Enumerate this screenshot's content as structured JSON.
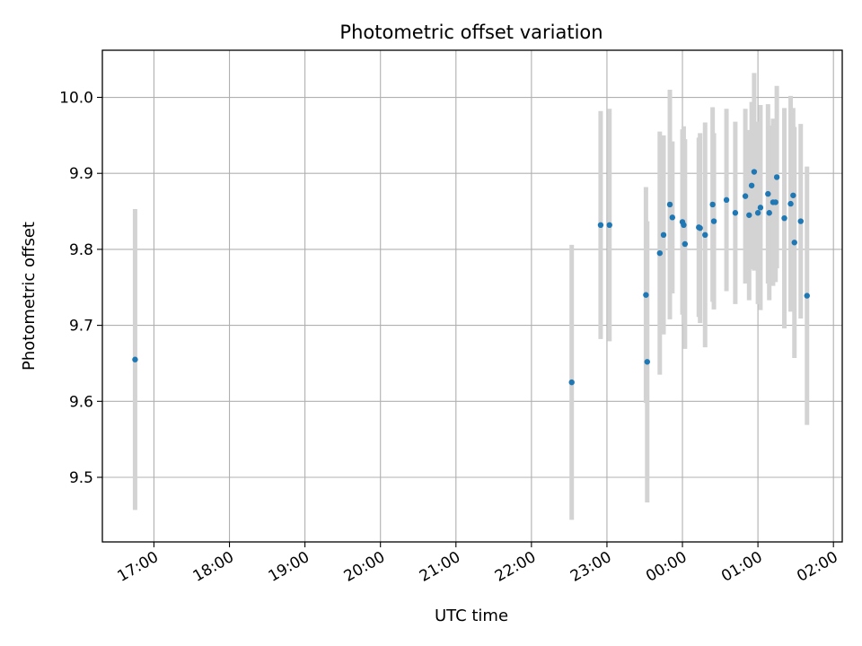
{
  "chart_data": {
    "type": "scatter",
    "title": "Photometric offset variation",
    "xlabel": "UTC time",
    "ylabel": "Photometric offset",
    "x_ticks": [
      "17:00",
      "18:00",
      "19:00",
      "20:00",
      "21:00",
      "22:00",
      "23:00",
      "00:00",
      "01:00",
      "02:00"
    ],
    "y_ticks": [
      "9.5",
      "9.6",
      "9.7",
      "9.8",
      "9.9",
      "10.0"
    ],
    "xlim": [
      "16:19",
      "02:07"
    ],
    "ylim": [
      9.415,
      10.062
    ],
    "grid": true,
    "colors": {
      "points": "#1f77b4",
      "errorbars": "#d3d3d3",
      "grid": "#b0b0b0"
    },
    "series": [
      {
        "points": [
          {
            "t": "16:45",
            "y": 9.655,
            "err": 0.198
          },
          {
            "t": "22:32",
            "y": 9.625,
            "err": 0.181
          },
          {
            "t": "22:55",
            "y": 9.832,
            "err": 0.15
          },
          {
            "t": "23:02",
            "y": 9.832,
            "err": 0.153
          },
          {
            "t": "23:31",
            "y": 9.74,
            "err": 0.142
          },
          {
            "t": "23:32",
            "y": 9.652,
            "err": 0.185
          },
          {
            "t": "23:42",
            "y": 9.795,
            "err": 0.16
          },
          {
            "t": "23:45",
            "y": 9.819,
            "err": 0.131
          },
          {
            "t": "23:50",
            "y": 9.859,
            "err": 0.151
          },
          {
            "t": "23:52",
            "y": 9.842,
            "err": 0.1
          },
          {
            "t": "00:00",
            "y": 9.836,
            "err": 0.122
          },
          {
            "t": "00:01",
            "y": 9.832,
            "err": 0.13
          },
          {
            "t": "00:02",
            "y": 9.807,
            "err": 0.138
          },
          {
            "t": "00:13",
            "y": 9.829,
            "err": 0.118
          },
          {
            "t": "00:14",
            "y": 9.828,
            "err": 0.125
          },
          {
            "t": "00:18",
            "y": 9.819,
            "err": 0.148
          },
          {
            "t": "00:24",
            "y": 9.859,
            "err": 0.128
          },
          {
            "t": "00:25",
            "y": 9.837,
            "err": 0.116
          },
          {
            "t": "00:35",
            "y": 9.865,
            "err": 0.12
          },
          {
            "t": "00:42",
            "y": 9.848,
            "err": 0.12
          },
          {
            "t": "00:50",
            "y": 9.87,
            "err": 0.115
          },
          {
            "t": "00:53",
            "y": 9.845,
            "err": 0.112
          },
          {
            "t": "00:55",
            "y": 9.884,
            "err": 0.11
          },
          {
            "t": "00:57",
            "y": 9.902,
            "err": 0.13
          },
          {
            "t": "01:00",
            "y": 9.848,
            "err": 0.12
          },
          {
            "t": "01:02",
            "y": 9.855,
            "err": 0.135
          },
          {
            "t": "01:08",
            "y": 9.873,
            "err": 0.118
          },
          {
            "t": "01:09",
            "y": 9.848,
            "err": 0.115
          },
          {
            "t": "01:12",
            "y": 9.862,
            "err": 0.11
          },
          {
            "t": "01:14",
            "y": 9.862,
            "err": 0.105
          },
          {
            "t": "01:15",
            "y": 9.895,
            "err": 0.12
          },
          {
            "t": "01:21",
            "y": 9.841,
            "err": 0.145
          },
          {
            "t": "01:26",
            "y": 9.86,
            "err": 0.142
          },
          {
            "t": "01:28",
            "y": 9.871,
            "err": 0.115
          },
          {
            "t": "01:29",
            "y": 9.809,
            "err": 0.152
          },
          {
            "t": "01:34",
            "y": 9.837,
            "err": 0.128
          },
          {
            "t": "01:39",
            "y": 9.739,
            "err": 0.17
          }
        ]
      }
    ]
  }
}
